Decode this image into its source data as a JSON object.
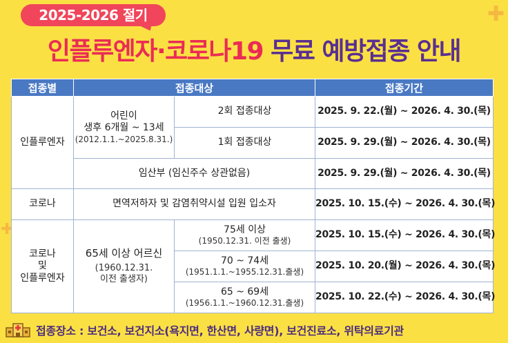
{
  "badge": {
    "text": "2025-2026 절기"
  },
  "title": {
    "part_red": "인플루엔자·코로나19",
    "part_purple": "무료 예방접종 안내"
  },
  "table": {
    "headers": [
      "접종별",
      "접종대상",
      "접종기간"
    ],
    "flu": {
      "category": "인플루엔자",
      "children": {
        "line1": "어린이",
        "line2": "생후 6개월 ~ 13세",
        "line3": "(2012.1.1.~2025.8.31.)"
      },
      "dose2": {
        "label": "2회 접종대상",
        "period": "2025. 9. 22.(월) ~ 2026. 4. 30.(목)"
      },
      "dose1": {
        "label": "1회 접종대상",
        "period": "2025. 9. 29.(월) ~ 2026. 4. 30.(목)"
      },
      "pregnant": {
        "label": "임산부 (임신주수 상관없음)",
        "period": "2025. 9. 29.(월) ~ 2026. 4. 30.(목)"
      }
    },
    "covid": {
      "category": "코로나",
      "target": "면역저하자 및 감염취약시설 입원 입소자",
      "period": "2025. 10. 15.(수) ~ 2026. 4. 30.(목)"
    },
    "both": {
      "category_l1": "코로나",
      "category_l2": "및",
      "category_l3": "인플루엔자",
      "elderly": {
        "line1": "65세 이상 어르신",
        "line2": "(1960.12.31.",
        "line3": "이전 출생자)"
      },
      "age75": {
        "label": "75세 이상",
        "sub": "(1950.12.31. 이전 출생)",
        "period": "2025. 10. 15.(수) ~ 2026. 4. 30.(목)"
      },
      "age70": {
        "label": "70 ~ 74세",
        "sub": "(1951.1.1.~1955.12.31.출생)",
        "period": "2025. 10. 20.(월) ~ 2026. 4. 30.(목)"
      },
      "age65": {
        "label": "65 ~ 69세",
        "sub": "(1956.1.1.~1960.12.31.출생)",
        "period": "2025. 10. 22.(수) ~ 2026. 4. 30.(목)"
      }
    }
  },
  "footer": {
    "icon": "hospital-building-icon",
    "text": "접종장소 : 보건소, 보건지소(욕지면, 한산면, 사량면), 보건진료소, 위탁의료기관"
  },
  "colors": {
    "background": "#fbe044",
    "badge": "#f0455a",
    "title_red": "#ea2c55",
    "title_purple": "#5a2f91",
    "header": "#4a79c4",
    "footer_text": "#4d2d7e"
  }
}
